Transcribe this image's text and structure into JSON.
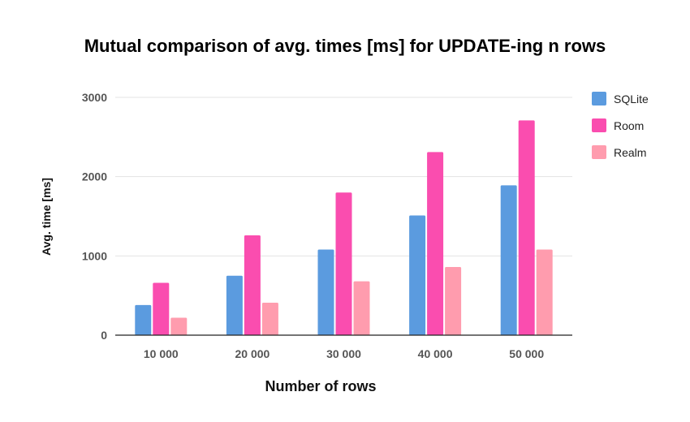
{
  "chart_data": {
    "type": "bar",
    "title": "Mutual comparison of avg. times [ms] for UPDATE-ing n rows",
    "xlabel": "Number of rows",
    "ylabel": "Avg. time [ms]",
    "categories": [
      "10 000",
      "20 000",
      "30 000",
      "40 000",
      "50 000"
    ],
    "series": [
      {
        "name": "SQLite",
        "color": "#5B9BDF",
        "values": [
          380,
          750,
          1080,
          1510,
          1890
        ]
      },
      {
        "name": "Room",
        "color": "#FA4DAF",
        "values": [
          660,
          1260,
          1800,
          2310,
          2710
        ]
      },
      {
        "name": "Realm",
        "color": "#FF9CAE",
        "values": [
          220,
          410,
          680,
          860,
          1080
        ]
      }
    ],
    "ylim": [
      0,
      3000
    ],
    "yticks": [
      0,
      1000,
      2000,
      3000
    ],
    "grid": true,
    "legend_position": "right"
  }
}
